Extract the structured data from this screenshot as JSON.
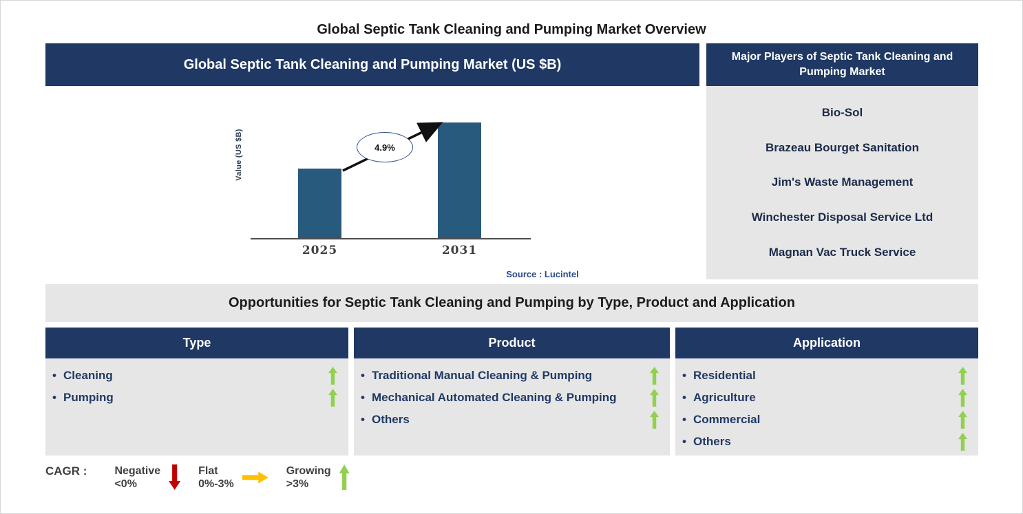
{
  "page": {
    "title": "Global Septic Tank Cleaning and Pumping Market Overview"
  },
  "colors": {
    "header_navy": "#1F3864",
    "panel_gray": "#E6E6E6",
    "bar_blue": "#285A7D",
    "growing_green": "#92D050",
    "negative_red": "#C00000",
    "flat_yellow": "#FFC000",
    "source_blue": "#2B4A8B"
  },
  "market_chart": {
    "header": "Global Septic Tank Cleaning and Pumping Market (US $B)",
    "ylabel": "Value (US $B)",
    "cagr_label": "4.9%",
    "source": "Source : Lucintel",
    "chart_data": {
      "type": "bar",
      "title": "Global Septic Tank Cleaning and Pumping Market (US $B)",
      "categories": [
        "2025",
        "2031"
      ],
      "values": [
        0.6,
        1.0
      ],
      "values_note": "bars carry no numeric labels; heights normalized to the 2031 bar",
      "units": "US $B",
      "ylabel": "Value (US $B)",
      "annotation": "4.9%",
      "annotation_meaning": "CAGR from 2025 to 2031",
      "bar_color": "#285A7D",
      "grid": false,
      "legend_position": "none",
      "source": "Source : Lucintel"
    }
  },
  "major_players": {
    "header": "Major Players of Septic Tank Cleaning and Pumping Market",
    "players": [
      "Bio-Sol",
      "Brazeau Bourget Sanitation",
      "Jim's Waste Management",
      "Winchester Disposal Service Ltd",
      "Magnan Vac Truck Service"
    ]
  },
  "opportunities": {
    "header": "Opportunities for Septic Tank Cleaning and Pumping by Type, Product and Application",
    "columns": [
      {
        "header": "Type",
        "items": [
          {
            "label": "Cleaning",
            "trend": "growing"
          },
          {
            "label": "Pumping",
            "trend": "growing"
          }
        ]
      },
      {
        "header": "Product",
        "items": [
          {
            "label": "Traditional Manual Cleaning & Pumping",
            "trend": "growing"
          },
          {
            "label": "Mechanical Automated Cleaning & Pumping",
            "trend": "growing"
          },
          {
            "label": "Others",
            "trend": "growing"
          }
        ]
      },
      {
        "header": "Application",
        "items": [
          {
            "label": "Residential",
            "trend": "growing"
          },
          {
            "label": "Agriculture",
            "trend": "growing"
          },
          {
            "label": "Commercial",
            "trend": "growing"
          },
          {
            "label": "Others",
            "trend": "growing"
          }
        ]
      }
    ]
  },
  "legend": {
    "prefix": "CAGR :",
    "items": [
      {
        "label": "Negative",
        "range": "<0%",
        "arrow": "down",
        "color": "#C00000"
      },
      {
        "label": "Flat",
        "range": "0%-3%",
        "arrow": "right",
        "color": "#FFC000"
      },
      {
        "label": "Growing",
        "range": ">3%",
        "arrow": "up",
        "color": "#92D050"
      }
    ]
  }
}
